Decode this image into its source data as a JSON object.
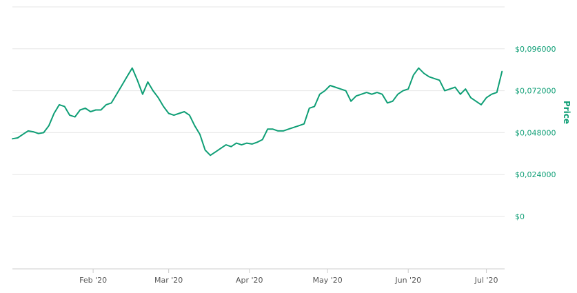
{
  "chart_data": {
    "type": "line",
    "title": "",
    "xlabel": "",
    "ylabel": "Price",
    "y_tick_labels": [
      "$0",
      "$0,024000",
      "$0,048000",
      "$0,072000",
      "$0,096000"
    ],
    "y_ticks": [
      0,
      0.024,
      0.048,
      0.072,
      0.096
    ],
    "ylim": [
      -0.03,
      0.12
    ],
    "x_tick_labels": [
      "Feb '20",
      "Mar '20",
      "Apr '20",
      "May '20",
      "Jun '20",
      "Jul '20"
    ],
    "x_ticks": [
      "2020-02-01",
      "2020-03-01",
      "2020-04-01",
      "2020-05-01",
      "2020-06-01",
      "2020-07-01"
    ],
    "xlim": [
      "2020-01-01",
      "2020-07-08"
    ],
    "y_axis_position": "right",
    "grid": true,
    "legend": "none",
    "series": [
      {
        "color": "#0e9e75",
        "points": [
          [
            "2020-01-01",
            0.0445
          ],
          [
            "2020-01-03",
            0.045
          ],
          [
            "2020-01-05",
            0.047
          ],
          [
            "2020-01-07",
            0.049
          ],
          [
            "2020-01-09",
            0.0485
          ],
          [
            "2020-01-11",
            0.0475
          ],
          [
            "2020-01-13",
            0.048
          ],
          [
            "2020-01-15",
            0.052
          ],
          [
            "2020-01-17",
            0.059
          ],
          [
            "2020-01-19",
            0.064
          ],
          [
            "2020-01-21",
            0.063
          ],
          [
            "2020-01-23",
            0.058
          ],
          [
            "2020-01-25",
            0.057
          ],
          [
            "2020-01-27",
            0.061
          ],
          [
            "2020-01-29",
            0.062
          ],
          [
            "2020-01-31",
            0.06
          ],
          [
            "2020-02-02",
            0.061
          ],
          [
            "2020-02-04",
            0.061
          ],
          [
            "2020-02-06",
            0.064
          ],
          [
            "2020-02-08",
            0.065
          ],
          [
            "2020-02-10",
            0.07
          ],
          [
            "2020-02-12",
            0.075
          ],
          [
            "2020-02-14",
            0.08
          ],
          [
            "2020-02-16",
            0.085
          ],
          [
            "2020-02-18",
            0.078
          ],
          [
            "2020-02-20",
            0.07
          ],
          [
            "2020-02-22",
            0.077
          ],
          [
            "2020-02-24",
            0.072
          ],
          [
            "2020-02-26",
            0.068
          ],
          [
            "2020-02-28",
            0.063
          ],
          [
            "2020-03-01",
            0.059
          ],
          [
            "2020-03-03",
            0.058
          ],
          [
            "2020-03-05",
            0.059
          ],
          [
            "2020-03-07",
            0.06
          ],
          [
            "2020-03-09",
            0.058
          ],
          [
            "2020-03-11",
            0.052
          ],
          [
            "2020-03-13",
            0.047
          ],
          [
            "2020-03-15",
            0.038
          ],
          [
            "2020-03-17",
            0.035
          ],
          [
            "2020-03-19",
            0.037
          ],
          [
            "2020-03-21",
            0.039
          ],
          [
            "2020-03-23",
            0.041
          ],
          [
            "2020-03-25",
            0.04
          ],
          [
            "2020-03-27",
            0.042
          ],
          [
            "2020-03-29",
            0.041
          ],
          [
            "2020-03-31",
            0.042
          ],
          [
            "2020-04-02",
            0.0415
          ],
          [
            "2020-04-04",
            0.0425
          ],
          [
            "2020-04-06",
            0.044
          ],
          [
            "2020-04-08",
            0.05
          ],
          [
            "2020-04-10",
            0.05
          ],
          [
            "2020-04-12",
            0.049
          ],
          [
            "2020-04-14",
            0.049
          ],
          [
            "2020-04-16",
            0.05
          ],
          [
            "2020-04-18",
            0.051
          ],
          [
            "2020-04-20",
            0.052
          ],
          [
            "2020-04-22",
            0.053
          ],
          [
            "2020-04-24",
            0.062
          ],
          [
            "2020-04-26",
            0.063
          ],
          [
            "2020-04-28",
            0.07
          ],
          [
            "2020-04-30",
            0.072
          ],
          [
            "2020-05-02",
            0.075
          ],
          [
            "2020-05-04",
            0.074
          ],
          [
            "2020-05-06",
            0.073
          ],
          [
            "2020-05-08",
            0.072
          ],
          [
            "2020-05-10",
            0.066
          ],
          [
            "2020-05-12",
            0.069
          ],
          [
            "2020-05-14",
            0.07
          ],
          [
            "2020-05-16",
            0.071
          ],
          [
            "2020-05-18",
            0.07
          ],
          [
            "2020-05-20",
            0.071
          ],
          [
            "2020-05-22",
            0.07
          ],
          [
            "2020-05-24",
            0.065
          ],
          [
            "2020-05-26",
            0.066
          ],
          [
            "2020-05-28",
            0.07
          ],
          [
            "2020-05-30",
            0.072
          ],
          [
            "2020-06-01",
            0.073
          ],
          [
            "2020-06-03",
            0.081
          ],
          [
            "2020-06-05",
            0.085
          ],
          [
            "2020-06-07",
            0.082
          ],
          [
            "2020-06-09",
            0.08
          ],
          [
            "2020-06-11",
            0.079
          ],
          [
            "2020-06-13",
            0.078
          ],
          [
            "2020-06-15",
            0.072
          ],
          [
            "2020-06-17",
            0.073
          ],
          [
            "2020-06-19",
            0.074
          ],
          [
            "2020-06-21",
            0.07
          ],
          [
            "2020-06-23",
            0.073
          ],
          [
            "2020-06-25",
            0.068
          ],
          [
            "2020-06-27",
            0.066
          ],
          [
            "2020-06-29",
            0.064
          ],
          [
            "2020-07-01",
            0.068
          ],
          [
            "2020-07-03",
            0.07
          ],
          [
            "2020-07-05",
            0.071
          ],
          [
            "2020-07-07",
            0.083
          ]
        ]
      }
    ]
  }
}
